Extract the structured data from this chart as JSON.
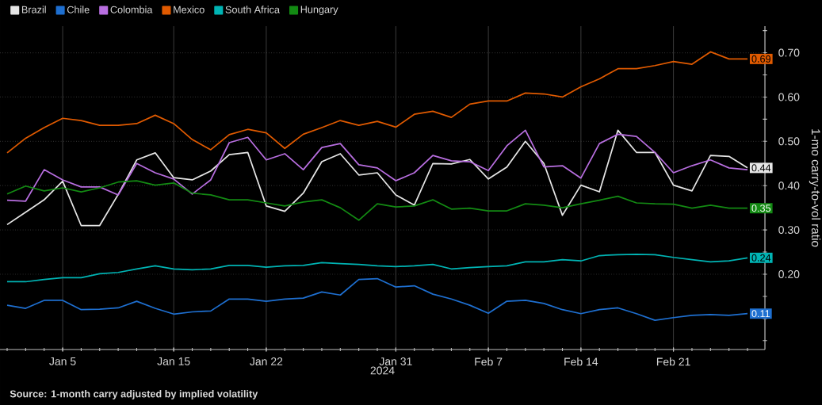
{
  "chart_data": {
    "type": "line",
    "xlabel": "2024",
    "ylabel": "1-mo carry-to-vol ratio",
    "annotations": [
      "**Source: 1-month carry adjusted by implied volatility**"
    ],
    "categories": [
      null,
      null,
      null,
      "Jan 5",
      null,
      null,
      null,
      null,
      null,
      "Jan 15",
      null,
      null,
      null,
      null,
      "Jan 22",
      null,
      null,
      null,
      null,
      null,
      null,
      "Jan 31",
      null,
      null,
      null,
      null,
      "Feb 7",
      null,
      null,
      null,
      null,
      "Feb 14",
      null,
      null,
      null,
      null,
      "Feb 21",
      null,
      null,
      null,
      null
    ],
    "series": [
      {
        "name": "Brazil",
        "color": "#e6e6e6",
        "values": [
          0.312,
          0.34,
          0.368,
          0.41,
          0.31,
          0.31,
          0.38,
          0.458,
          0.474,
          0.418,
          0.413,
          0.433,
          0.47,
          0.475,
          0.354,
          0.342,
          0.383,
          0.454,
          0.472,
          0.424,
          0.429,
          0.379,
          0.356,
          0.45,
          0.449,
          0.459,
          0.415,
          0.442,
          0.5,
          0.45,
          0.333,
          0.401,
          0.386,
          0.525,
          0.475,
          0.475,
          0.401,
          0.388,
          0.468,
          0.466,
          0.44
        ],
        "value_labels": [
          null,
          null,
          null,
          null,
          null,
          null,
          null,
          null,
          null,
          null,
          null,
          null,
          null,
          null,
          null,
          null,
          null,
          null,
          null,
          null,
          null,
          null,
          null,
          null,
          null,
          null,
          null,
          null,
          null,
          null,
          null,
          null,
          null,
          null,
          null,
          null,
          null,
          null,
          null,
          null,
          "0.44"
        ]
      },
      {
        "name": "Chile",
        "color": "#1e6fd0",
        "values": [
          0.13,
          0.123,
          0.141,
          0.141,
          0.12,
          0.121,
          0.124,
          0.139,
          0.123,
          0.11,
          0.115,
          0.117,
          0.144,
          0.144,
          0.139,
          0.144,
          0.146,
          0.16,
          0.153,
          0.188,
          0.19,
          0.171,
          0.174,
          0.155,
          0.144,
          0.13,
          0.112,
          0.139,
          0.141,
          0.134,
          0.12,
          0.111,
          0.12,
          0.124,
          0.111,
          0.096,
          0.102,
          0.107,
          0.109,
          0.107,
          0.111
        ],
        "value_labels": [
          null,
          null,
          null,
          null,
          null,
          null,
          null,
          null,
          null,
          null,
          null,
          null,
          null,
          null,
          null,
          null,
          null,
          null,
          null,
          null,
          null,
          null,
          null,
          null,
          null,
          null,
          null,
          null,
          null,
          null,
          null,
          null,
          null,
          null,
          null,
          null,
          null,
          null,
          null,
          null,
          "0.11"
        ]
      },
      {
        "name": "Colombia",
        "color": "#b86ee0",
        "values": [
          0.367,
          0.365,
          0.436,
          0.413,
          0.397,
          0.397,
          0.379,
          0.45,
          0.429,
          0.415,
          0.381,
          0.413,
          0.497,
          0.509,
          0.458,
          0.472,
          0.436,
          0.486,
          0.495,
          0.447,
          0.44,
          0.411,
          0.429,
          0.468,
          0.456,
          0.454,
          0.434,
          0.49,
          0.525,
          0.442,
          0.445,
          0.417,
          0.495,
          0.516,
          0.511,
          0.475,
          0.429,
          0.445,
          0.458,
          0.44,
          0.436
        ]
      },
      {
        "name": "Mexico",
        "color": "#e05a00",
        "values": [
          0.474,
          0.507,
          0.531,
          0.552,
          0.547,
          0.536,
          0.536,
          0.54,
          0.559,
          0.54,
          0.504,
          0.481,
          0.515,
          0.527,
          0.519,
          0.484,
          0.516,
          0.531,
          0.547,
          0.536,
          0.545,
          0.532,
          0.561,
          0.568,
          0.554,
          0.584,
          0.591,
          0.591,
          0.609,
          0.607,
          0.6,
          0.623,
          0.641,
          0.664,
          0.664,
          0.671,
          0.68,
          0.674,
          0.702,
          0.686,
          0.686
        ],
        "value_labels": [
          null,
          null,
          null,
          null,
          null,
          null,
          null,
          null,
          null,
          null,
          null,
          null,
          null,
          null,
          null,
          null,
          null,
          null,
          null,
          null,
          null,
          null,
          null,
          null,
          null,
          null,
          null,
          null,
          null,
          null,
          null,
          null,
          null,
          null,
          null,
          null,
          null,
          null,
          null,
          null,
          "0.69"
        ]
      },
      {
        "name": "South Africa",
        "color": "#00b4b4",
        "values": [
          0.183,
          0.183,
          0.188,
          0.192,
          0.192,
          0.201,
          0.204,
          0.212,
          0.219,
          0.212,
          0.21,
          0.212,
          0.22,
          0.22,
          0.216,
          0.219,
          0.22,
          0.226,
          0.224,
          0.222,
          0.219,
          0.217,
          0.219,
          0.222,
          0.212,
          0.215,
          0.217,
          0.219,
          0.228,
          0.228,
          0.233,
          0.23,
          0.242,
          0.244,
          0.245,
          0.244,
          0.238,
          0.233,
          0.228,
          0.23,
          0.237
        ],
        "value_labels": [
          null,
          null,
          null,
          null,
          null,
          null,
          null,
          null,
          null,
          null,
          null,
          null,
          null,
          null,
          null,
          null,
          null,
          null,
          null,
          null,
          null,
          null,
          null,
          null,
          null,
          null,
          null,
          null,
          null,
          null,
          null,
          null,
          null,
          null,
          null,
          null,
          null,
          null,
          null,
          null,
          "0.24"
        ]
      },
      {
        "name": "Hungary",
        "color": "#138a13",
        "values": [
          0.381,
          0.399,
          0.388,
          0.395,
          0.386,
          0.395,
          0.408,
          0.411,
          0.401,
          0.406,
          0.383,
          0.379,
          0.368,
          0.368,
          0.361,
          0.354,
          0.363,
          0.368,
          0.35,
          0.322,
          0.359,
          0.352,
          0.354,
          0.368,
          0.347,
          0.349,
          0.343,
          0.343,
          0.359,
          0.356,
          0.35,
          0.359,
          0.367,
          0.376,
          0.361,
          0.359,
          0.358,
          0.349,
          0.356,
          0.349,
          0.349
        ],
        "value_labels": [
          null,
          null,
          null,
          null,
          null,
          null,
          null,
          null,
          null,
          null,
          null,
          null,
          null,
          null,
          null,
          null,
          null,
          null,
          null,
          null,
          null,
          null,
          null,
          null,
          null,
          null,
          null,
          null,
          null,
          null,
          null,
          null,
          null,
          null,
          null,
          null,
          null,
          null,
          null,
          null,
          "0.35"
        ]
      }
    ],
    "ylim": [
      0.03,
      0.76
    ],
    "yticks": [
      {
        "value": 0.05,
        "label": null
      },
      {
        "value": 0.1,
        "label": null
      },
      {
        "value": 0.15,
        "label": null
      },
      {
        "value": 0.2,
        "label": "0.20"
      },
      {
        "value": 0.25,
        "label": null
      },
      {
        "value": 0.3,
        "label": "0.30"
      },
      {
        "value": 0.35,
        "label": null
      },
      {
        "value": 0.4,
        "label": "0.40"
      },
      {
        "value": 0.45,
        "label": null
      },
      {
        "value": 0.5,
        "label": "0.50"
      },
      {
        "value": 0.55,
        "label": null
      },
      {
        "value": 0.6,
        "label": "0.60"
      },
      {
        "value": 0.65,
        "label": null
      },
      {
        "value": 0.7,
        "label": "0.70"
      },
      {
        "value": 0.75,
        "label": null
      }
    ],
    "grid": true,
    "legend": "top left"
  }
}
